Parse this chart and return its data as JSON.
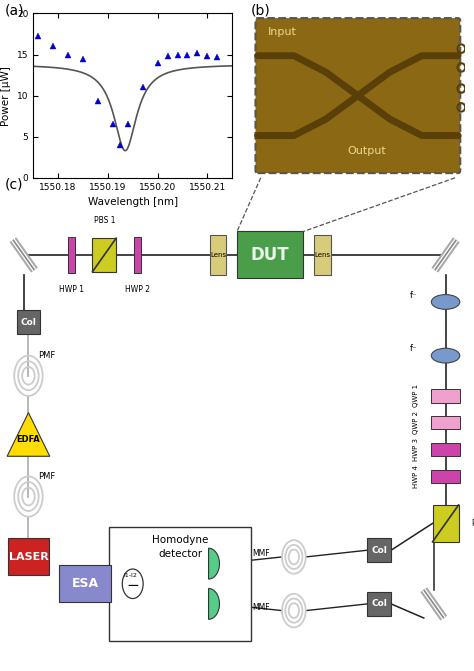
{
  "panel_a": {
    "xlabel": "Wavelength [nm]",
    "ylabel": "Power [μW]",
    "xlim": [
      1550.175,
      1550.215
    ],
    "ylim": [
      0,
      20
    ],
    "xticks": [
      1550.18,
      1550.19,
      1550.2,
      1550.21
    ],
    "yticks": [
      0,
      5,
      10,
      15,
      20
    ],
    "data_x": [
      1550.176,
      1550.179,
      1550.182,
      1550.185,
      1550.188,
      1550.191,
      1550.1925,
      1550.194,
      1550.197,
      1550.2,
      1550.202,
      1550.204,
      1550.206,
      1550.208,
      1550.21,
      1550.212
    ],
    "data_y": [
      17.2,
      16.0,
      15.0,
      14.5,
      9.3,
      6.5,
      4.0,
      6.5,
      11.0,
      14.0,
      14.8,
      15.0,
      15.0,
      15.2,
      14.8,
      14.7
    ],
    "fit_color": "#555555",
    "data_color": "#0000cc",
    "bg_color": "#ffffff"
  },
  "colors": {
    "line": "#222222",
    "mirror": "#888888",
    "hwp": "#cc44aa",
    "qwp": "#f0a0cc",
    "pbs": "#cccc22",
    "dut": "#4a9e4a",
    "lens": "#d8cc7a",
    "col": "#666666",
    "edfa": "#ffdd00",
    "laser": "#cc2222",
    "esa": "#8888cc",
    "detector": "#55cc88",
    "fiber": "#cccccc",
    "lens_oval": "#7799cc",
    "homodyne_bg": "#ffffff",
    "chip": "#8B6914",
    "chip_dark": "#5a4008",
    "chip_border": "#555555"
  }
}
